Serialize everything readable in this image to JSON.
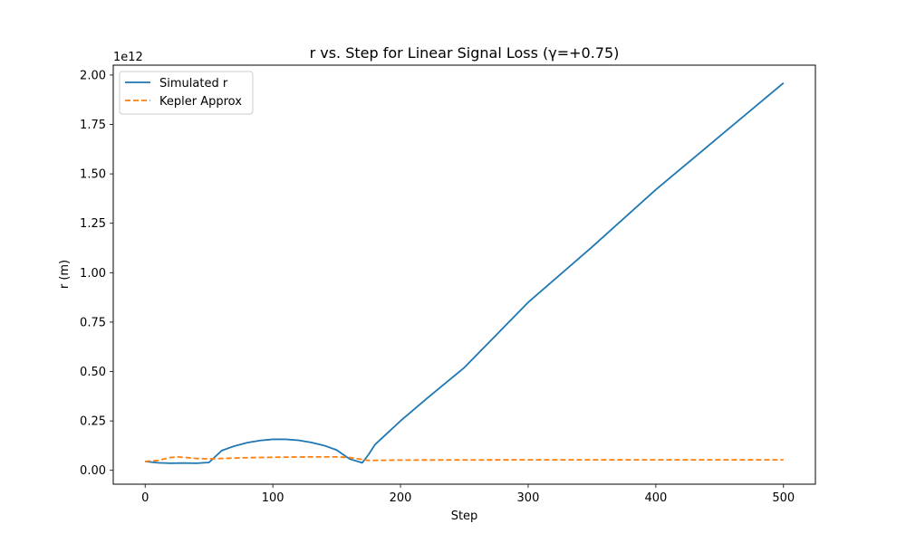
{
  "chart_data": {
    "type": "line",
    "title": "r vs. Step for Linear Signal Loss (γ=+0.75)",
    "xlabel": "Step",
    "ylabel": "r (m)",
    "y_multiplier_label": "1e12",
    "xlim": [
      -25,
      525
    ],
    "ylim": [
      -0.07,
      2.05
    ],
    "x_ticks": [
      0,
      100,
      200,
      300,
      400,
      500
    ],
    "x_tick_labels": [
      "0",
      "100",
      "200",
      "300",
      "400",
      "500"
    ],
    "y_ticks": [
      0,
      0.25,
      0.5,
      0.75,
      1.0,
      1.25,
      1.5,
      1.75,
      2.0
    ],
    "y_tick_labels": [
      "0.00",
      "0.25",
      "0.50",
      "0.75",
      "1.00",
      "1.25",
      "1.50",
      "1.75",
      "2.00"
    ],
    "grid": false,
    "legend_position": "top-left",
    "series": [
      {
        "name": "Simulated r",
        "color": "#1f77b4",
        "style": "solid",
        "x": [
          0,
          10,
          20,
          30,
          40,
          50,
          60,
          70,
          80,
          90,
          100,
          110,
          120,
          130,
          140,
          150,
          160,
          170,
          175,
          180,
          190,
          200,
          220,
          250,
          300,
          350,
          400,
          450,
          500
        ],
        "y": [
          0.045,
          0.038,
          0.036,
          0.037,
          0.036,
          0.04,
          0.1,
          0.123,
          0.14,
          0.151,
          0.157,
          0.157,
          0.152,
          0.141,
          0.126,
          0.103,
          0.058,
          0.038,
          0.08,
          0.13,
          0.19,
          0.25,
          0.36,
          0.52,
          0.85,
          1.13,
          1.42,
          1.69,
          1.96
        ]
      },
      {
        "name": "Kepler Approx",
        "color": "#ff7f0e",
        "style": "dashed",
        "x": [
          0,
          10,
          20,
          25,
          30,
          40,
          50,
          60,
          80,
          100,
          130,
          150,
          160,
          170,
          175,
          200,
          300,
          400,
          500
        ],
        "y": [
          0.045,
          0.05,
          0.065,
          0.068,
          0.066,
          0.06,
          0.058,
          0.06,
          0.064,
          0.066,
          0.068,
          0.068,
          0.065,
          0.055,
          0.05,
          0.052,
          0.053,
          0.053,
          0.053
        ]
      }
    ]
  }
}
